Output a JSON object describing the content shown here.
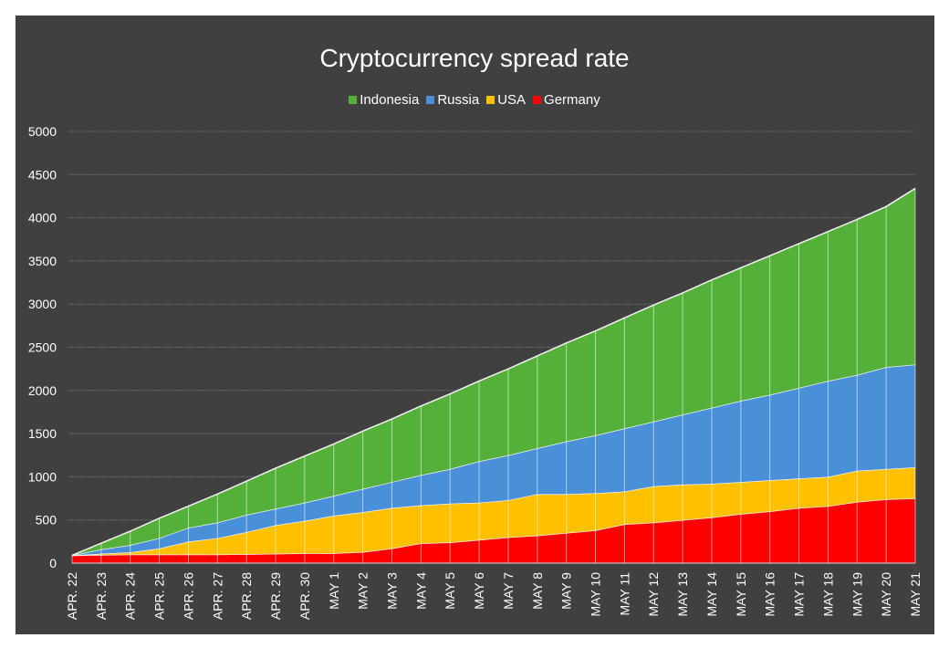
{
  "chart_data": {
    "type": "area",
    "stacked": true,
    "title": "Cryptocurrency spread rate",
    "xlabel": "",
    "ylabel": "",
    "ylim": [
      0,
      5000
    ],
    "yticks": [
      0,
      500,
      1000,
      1500,
      2000,
      2500,
      3000,
      3500,
      4000,
      4500,
      5000
    ],
    "grid": true,
    "legend": "top",
    "categories": [
      "APR. 22",
      "APR. 23",
      "APR. 24",
      "APR. 25",
      "APR. 26",
      "APR. 27",
      "APR. 28",
      "APR. 29",
      "APR. 30",
      "MAY 1",
      "MAY 2",
      "MAY 3",
      "MAY 4",
      "MAY 5",
      "MAY 6",
      "MAY 7",
      "MAY 8",
      "MAY 9",
      "MAY 10",
      "MAY 11",
      "MAY 12",
      "MAY 13",
      "MAY 14",
      "MAY 15",
      "MAY 16",
      "MAY 17",
      "MAY 18",
      "MAY 19",
      "MAY 20",
      "MAY 21"
    ],
    "series": [
      {
        "name": "Germany",
        "color": "#ff0000",
        "values": [
          90,
          95,
          100,
          100,
          100,
          100,
          105,
          110,
          115,
          115,
          130,
          170,
          230,
          240,
          270,
          300,
          320,
          350,
          380,
          450,
          470,
          500,
          530,
          570,
          600,
          640,
          660,
          710,
          740,
          750
        ]
      },
      {
        "name": "USA",
        "color": "#ffc000",
        "values": [
          0,
          15,
          25,
          70,
          150,
          190,
          255,
          330,
          375,
          435,
          460,
          470,
          440,
          450,
          430,
          430,
          480,
          450,
          430,
          380,
          420,
          410,
          390,
          370,
          360,
          340,
          340,
          360,
          350,
          360
        ]
      },
      {
        "name": "Russia",
        "color": "#4a90d9",
        "values": [
          0,
          50,
          85,
          120,
          160,
          180,
          200,
          190,
          210,
          230,
          270,
          300,
          350,
          400,
          480,
          520,
          530,
          610,
          670,
          730,
          750,
          810,
          880,
          940,
          990,
          1050,
          1110,
          1110,
          1180,
          1190
        ]
      },
      {
        "name": "Indonesia",
        "color": "#55b03a",
        "values": [
          0,
          70,
          160,
          230,
          250,
          330,
          390,
          470,
          540,
          600,
          670,
          730,
          800,
          870,
          930,
          1000,
          1070,
          1140,
          1210,
          1280,
          1350,
          1410,
          1480,
          1540,
          1610,
          1670,
          1730,
          1800,
          1860,
          2040
        ]
      }
    ],
    "legend_order": [
      "Indonesia",
      "Russia",
      "USA",
      "Germany"
    ]
  }
}
